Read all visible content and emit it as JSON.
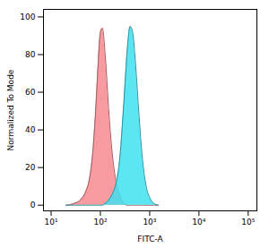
{
  "chart_data": {
    "type": "area",
    "x_label": "FITC-A",
    "y_label": "Normalized To Mode",
    "x": [
      20,
      30,
      40,
      50,
      60,
      70,
      80,
      90,
      100,
      110,
      125,
      150,
      175,
      200,
      250,
      300,
      350,
      400,
      450,
      500,
      600,
      700,
      850,
      1000,
      1200,
      1500
    ],
    "series": [
      {
        "color": "#f78a90",
        "values": [
          0,
          1,
          3,
          7,
          14,
          28,
          50,
          75,
          92,
          94,
          80,
          48,
          27,
          15,
          5,
          1,
          0,
          0,
          0,
          0,
          0,
          0,
          0,
          0,
          0,
          0
        ]
      },
      {
        "color": "#3fe0f0",
        "values": [
          0,
          0,
          0,
          0,
          0,
          0,
          0,
          0,
          0,
          0,
          1,
          3,
          6,
          10,
          26,
          55,
          82,
          95,
          92,
          80,
          50,
          27,
          10,
          4,
          1,
          0
        ]
      }
    ],
    "log": "x",
    "xlim": [
      7,
      150000
    ],
    "xticks": [
      {
        "value": 10,
        "label": "10¹"
      },
      {
        "value": 100,
        "label": "10²"
      },
      {
        "value": 1000,
        "label": "10³"
      },
      {
        "value": 10000,
        "label": "10⁴"
      },
      {
        "value": 100000,
        "label": "10⁵"
      }
    ],
    "ylim": [
      -3,
      104
    ],
    "yticks": [
      0,
      20,
      40,
      60,
      80,
      100
    ],
    "grid": false
  }
}
